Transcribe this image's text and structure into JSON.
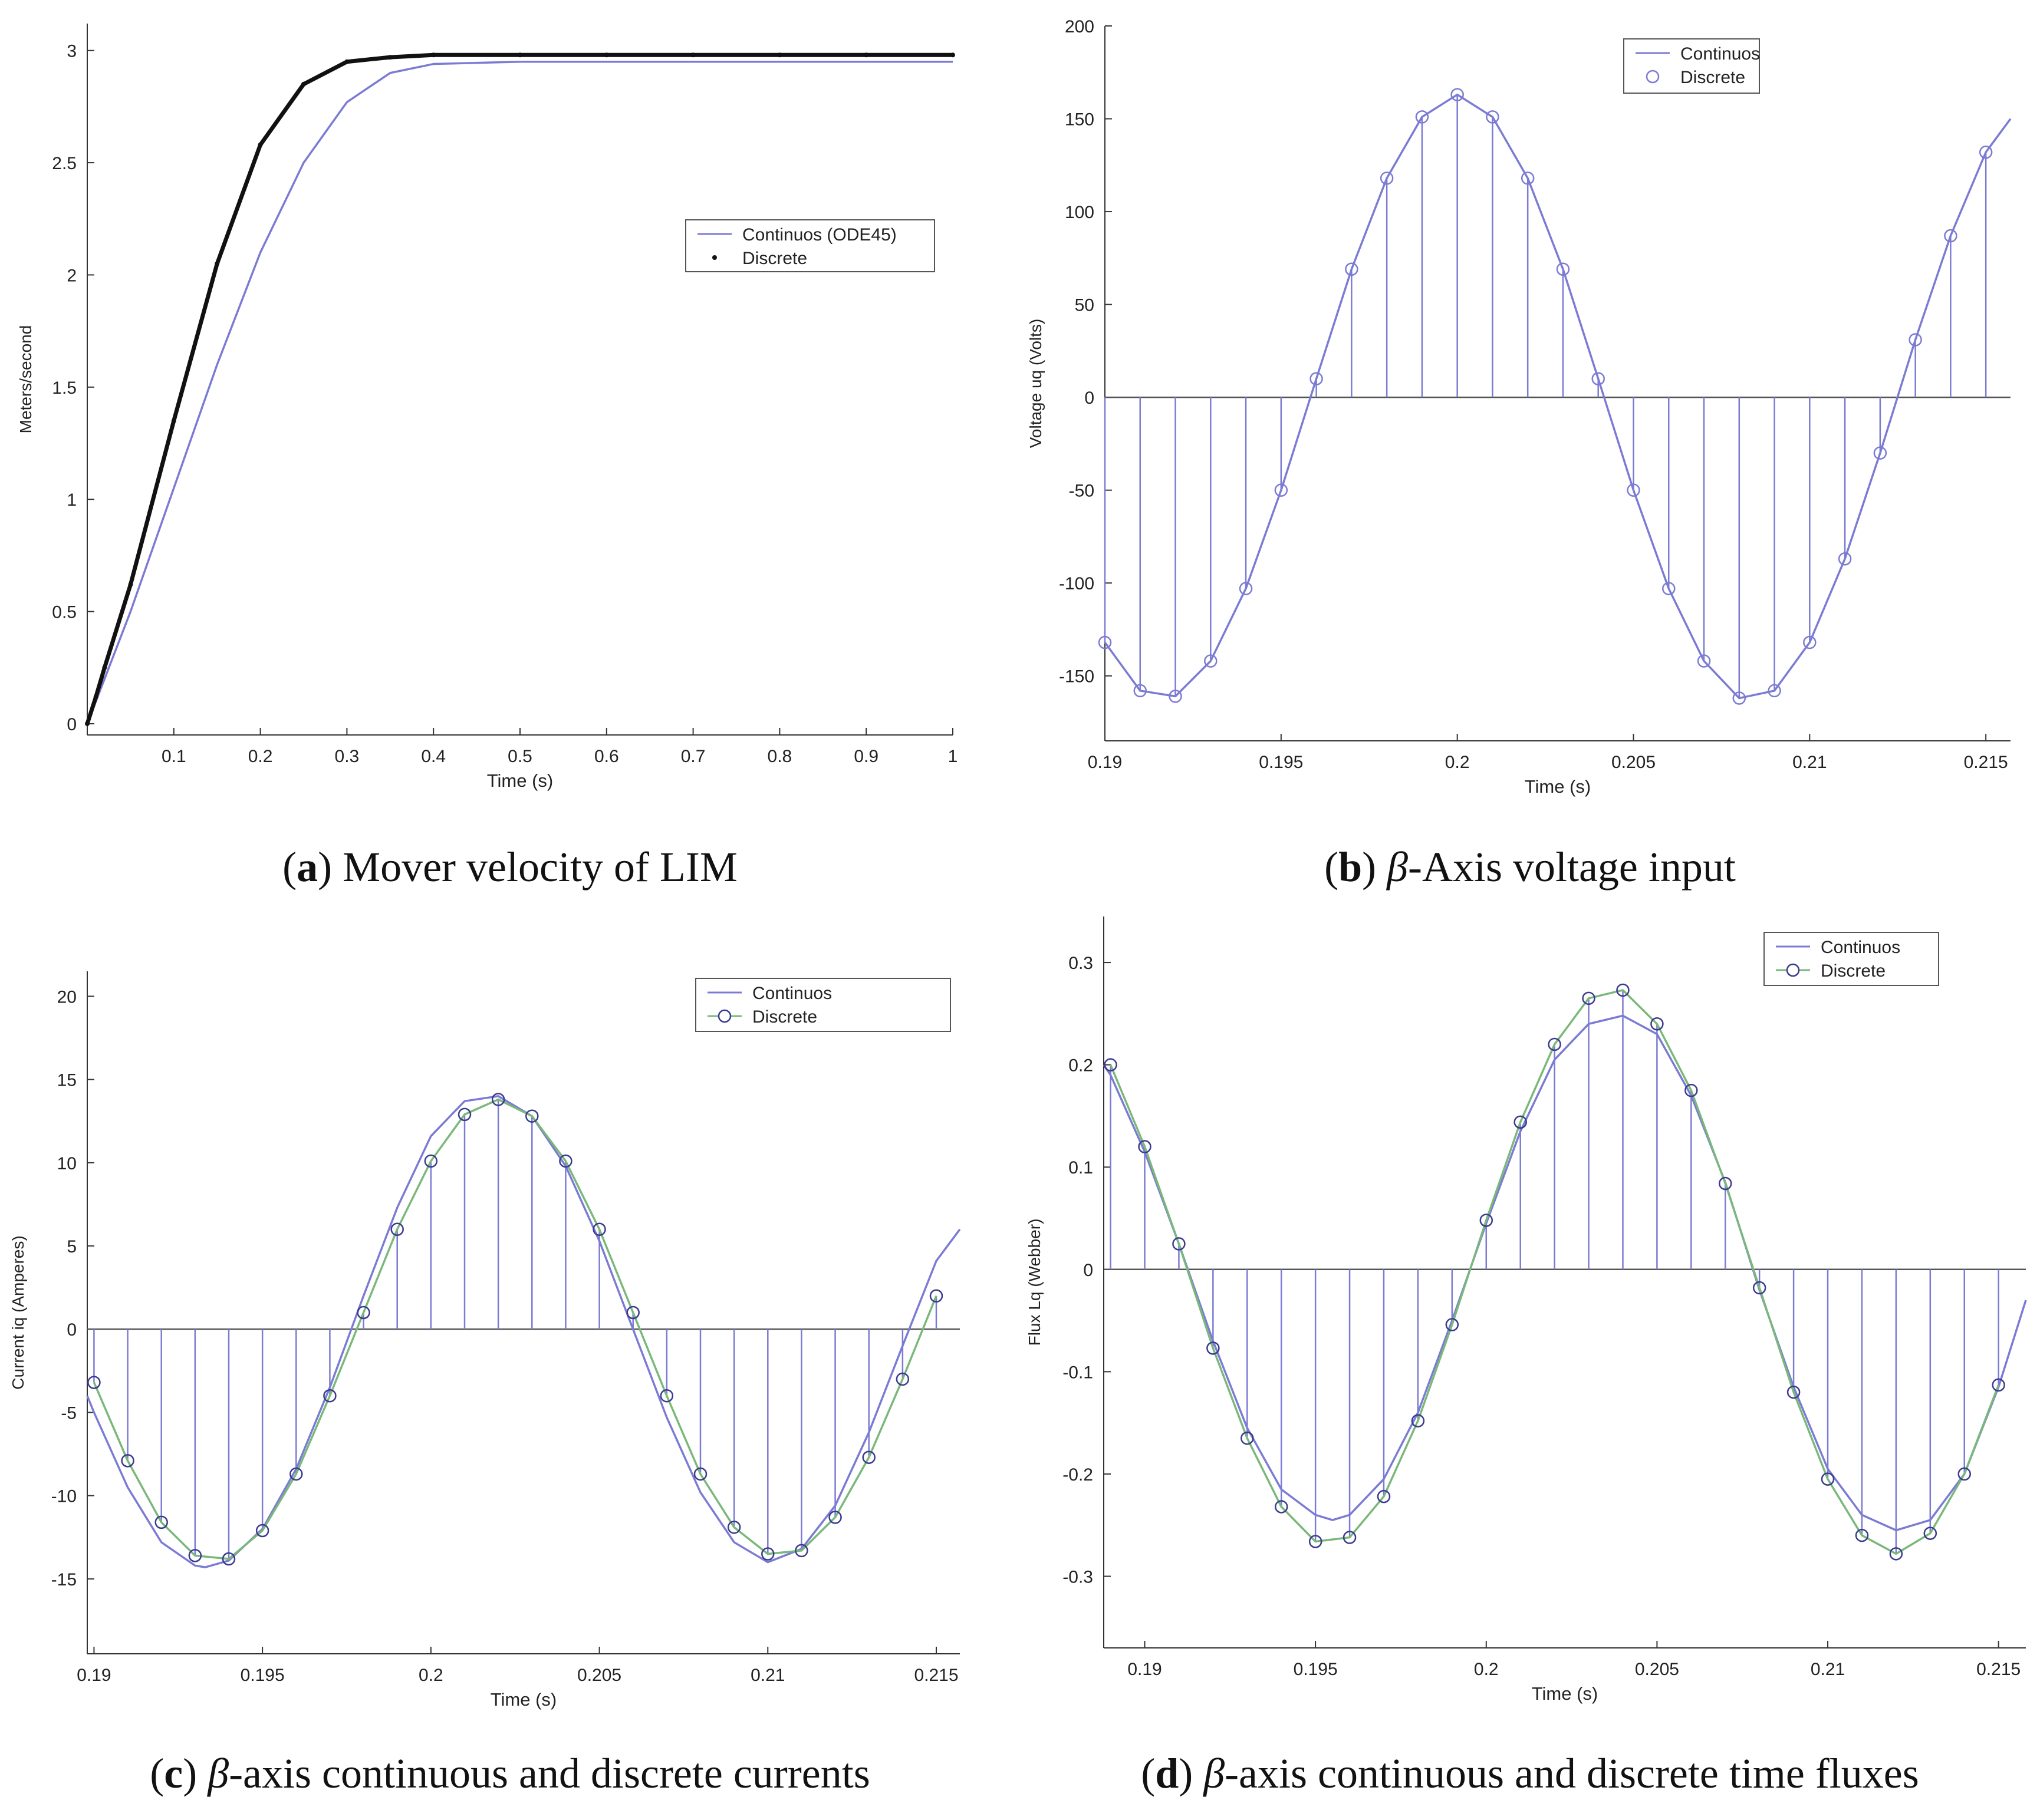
{
  "chart_data": [
    {
      "id": "a",
      "type": "line",
      "caption": {
        "letter": "a",
        "text": "Mover velocity of LIM"
      },
      "xlabel": "Time (s)",
      "ylabel": "Meters/second",
      "xlim": [
        0,
        1
      ],
      "ylim": [
        -0.05,
        3.12
      ],
      "xticks": [
        0.1,
        0.2,
        0.3,
        0.4,
        0.5,
        0.6,
        0.7,
        0.8,
        0.9,
        1
      ],
      "xtick_labels": [
        "0.1",
        "0.2",
        "0.3",
        "0.4",
        "0.5",
        "0.6",
        "0.7",
        "0.8",
        "0.9",
        "1"
      ],
      "yticks": [
        0,
        0.5,
        1,
        1.5,
        2,
        2.5,
        3
      ],
      "ytick_labels": [
        "0",
        "0.5",
        "1",
        "1.5",
        "2",
        "2.5",
        "3"
      ],
      "legend": {
        "position": "right",
        "entries": [
          "Continuos (ODE45)",
          "Discrete"
        ]
      },
      "series": [
        {
          "name": "Continuos (ODE45)",
          "style": "line",
          "color": "#7b7bd4",
          "x": [
            0,
            0.01,
            0.02,
            0.05,
            0.1,
            0.15,
            0.2,
            0.25,
            0.3,
            0.35,
            0.4,
            0.5,
            0.6,
            0.7,
            0.8,
            0.9,
            1.0
          ],
          "y": [
            0,
            0.1,
            0.2,
            0.5,
            1.05,
            1.6,
            2.1,
            2.5,
            2.77,
            2.9,
            2.94,
            2.95,
            2.95,
            2.95,
            2.95,
            2.95,
            2.95
          ]
        },
        {
          "name": "Discrete",
          "style": "dots",
          "color": "#111111",
          "x": [
            0,
            0.01,
            0.02,
            0.05,
            0.1,
            0.15,
            0.2,
            0.25,
            0.3,
            0.35,
            0.4,
            0.5,
            0.6,
            0.7,
            0.8,
            0.9,
            1.0
          ],
          "y": [
            0,
            0.12,
            0.25,
            0.62,
            1.35,
            2.05,
            2.58,
            2.85,
            2.95,
            2.97,
            2.98,
            2.98,
            2.98,
            2.98,
            2.98,
            2.98,
            2.98
          ]
        }
      ]
    },
    {
      "id": "b",
      "type": "line",
      "caption": {
        "letter": "b",
        "text": "-Axis voltage input"
      },
      "xlabel": "Time (s)",
      "ylabel": "Voltage uq (Volts)",
      "xlim": [
        0.19,
        0.2157
      ],
      "ylim": [
        -185,
        200
      ],
      "xticks": [
        0.19,
        0.195,
        0.2,
        0.205,
        0.21,
        0.215
      ],
      "xtick_labels": [
        "0.19",
        "0.195",
        "0.2",
        "0.205",
        "0.21",
        "0.215"
      ],
      "yticks": [
        -150,
        -100,
        -50,
        0,
        50,
        100,
        150,
        200
      ],
      "ytick_labels": [
        "-150",
        "-100",
        "-50",
        "0",
        "50",
        "100",
        "150",
        "200"
      ],
      "legend": {
        "position": "top-right",
        "entries": [
          "Continuos",
          "Discrete"
        ]
      },
      "series": [
        {
          "name": "Continuos",
          "style": "line",
          "color": "#7b7bd4",
          "x": [
            0.19,
            0.191,
            0.192,
            0.193,
            0.194,
            0.195,
            0.196,
            0.197,
            0.198,
            0.199,
            0.2,
            0.201,
            0.202,
            0.203,
            0.204,
            0.205,
            0.206,
            0.207,
            0.208,
            0.209,
            0.21,
            0.211,
            0.212,
            0.213,
            0.214,
            0.215,
            0.2157
          ],
          "y": [
            -132,
            -158,
            -161,
            -142,
            -103,
            -50,
            10,
            69,
            118,
            151,
            163,
            151,
            118,
            69,
            10,
            -50,
            -103,
            -142,
            -162,
            -158,
            -132,
            -87,
            -30,
            31,
            87,
            132,
            150
          ]
        },
        {
          "name": "Discrete",
          "style": "stem",
          "color": "#7b7bd4",
          "x": [
            0.19,
            0.191,
            0.192,
            0.193,
            0.194,
            0.195,
            0.196,
            0.197,
            0.198,
            0.199,
            0.2,
            0.201,
            0.202,
            0.203,
            0.204,
            0.205,
            0.206,
            0.207,
            0.208,
            0.209,
            0.21,
            0.211,
            0.212,
            0.213,
            0.214,
            0.215
          ],
          "y": [
            -132,
            -158,
            -161,
            -142,
            -103,
            -50,
            10,
            69,
            118,
            151,
            163,
            151,
            118,
            69,
            10,
            -50,
            -103,
            -142,
            -162,
            -158,
            -132,
            -87,
            -30,
            31,
            87,
            132
          ]
        }
      ]
    },
    {
      "id": "c",
      "type": "line",
      "caption": {
        "letter": "c",
        "text": "-axis continuous and discrete currents"
      },
      "xlabel": "Time (s)",
      "ylabel": "Current iq (Amperes)",
      "xlim": [
        0.1898,
        0.2157
      ],
      "ylim": [
        -19.5,
        21.5
      ],
      "xticks": [
        0.19,
        0.195,
        0.2,
        0.205,
        0.21,
        0.215
      ],
      "xtick_labels": [
        "0.19",
        "0.195",
        "0.2",
        "0.205",
        "0.21",
        "0.215"
      ],
      "yticks": [
        -15,
        -10,
        -5,
        0,
        5,
        10,
        15,
        20
      ],
      "ytick_labels": [
        "-15",
        "-10",
        "-5",
        "0",
        "5",
        "10",
        "15",
        "20"
      ],
      "legend": {
        "position": "top-right",
        "entries": [
          "Continuos",
          "Discrete"
        ]
      },
      "series": [
        {
          "name": "Continuos",
          "style": "line",
          "color": "#7b7bd4",
          "x": [
            0.1898,
            0.19,
            0.191,
            0.192,
            0.193,
            0.1933,
            0.194,
            0.195,
            0.196,
            0.197,
            0.198,
            0.199,
            0.2,
            0.201,
            0.202,
            0.203,
            0.204,
            0.205,
            0.206,
            0.207,
            0.208,
            0.209,
            0.21,
            0.211,
            0.212,
            0.213,
            0.214,
            0.215,
            0.2157
          ],
          "y": [
            -4.0,
            -5.0,
            -9.5,
            -12.8,
            -14.2,
            -14.3,
            -13.9,
            -12.0,
            -8.4,
            -3.5,
            2.0,
            7.3,
            11.6,
            13.7,
            14.0,
            12.8,
            9.8,
            5.3,
            0.0,
            -5.3,
            -9.8,
            -12.8,
            -14.0,
            -13.2,
            -10.6,
            -6.2,
            -1.0,
            4.1,
            6.0
          ]
        },
        {
          "name": "Discrete",
          "style": "stem-line",
          "color": "#7ab87a",
          "stem_color": "#7b7bd4",
          "x": [
            0.19,
            0.191,
            0.192,
            0.193,
            0.194,
            0.195,
            0.196,
            0.197,
            0.198,
            0.199,
            0.2,
            0.201,
            0.202,
            0.203,
            0.204,
            0.205,
            0.206,
            0.207,
            0.208,
            0.209,
            0.21,
            0.211,
            0.212,
            0.213,
            0.214,
            0.215
          ],
          "y": [
            -3.2,
            -7.9,
            -11.6,
            -13.6,
            -13.8,
            -12.1,
            -8.7,
            -4.0,
            1.0,
            6.0,
            10.1,
            12.9,
            13.8,
            12.8,
            10.1,
            6.0,
            1.0,
            -4.0,
            -8.7,
            -11.9,
            -13.5,
            -13.3,
            -11.3,
            -7.7,
            -3.0,
            2.0
          ]
        }
      ]
    },
    {
      "id": "d",
      "type": "line",
      "caption": {
        "letter": "d",
        "text": "-axis continuous and discrete time fluxes"
      },
      "xlabel": "Time (s)",
      "ylabel": "Flux Lq (Webber)",
      "xlim": [
        0.1888,
        0.2158
      ],
      "ylim": [
        -0.37,
        0.345
      ],
      "xticks": [
        0.19,
        0.195,
        0.2,
        0.205,
        0.21,
        0.215
      ],
      "xtick_labels": [
        "0.19",
        "0.195",
        "0.2",
        "0.205",
        "0.21",
        "0.215"
      ],
      "yticks": [
        -0.3,
        -0.2,
        -0.1,
        0,
        0.1,
        0.2,
        0.3
      ],
      "ytick_labels": [
        "-0.3",
        "-0.2",
        "-0.1",
        "0",
        "0.1",
        "0.2",
        "0.3"
      ],
      "legend": {
        "position": "top-right",
        "entries": [
          "Continuos",
          "Discrete"
        ]
      },
      "series": [
        {
          "name": "Continuos",
          "style": "line",
          "color": "#7b7bd4",
          "x": [
            0.1888,
            0.189,
            0.19,
            0.191,
            0.192,
            0.193,
            0.194,
            0.195,
            0.1955,
            0.196,
            0.197,
            0.198,
            0.199,
            0.2,
            0.201,
            0.202,
            0.203,
            0.204,
            0.205,
            0.206,
            0.207,
            0.208,
            0.209,
            0.21,
            0.211,
            0.212,
            0.213,
            0.214,
            0.215,
            0.2158
          ],
          "y": [
            0.2,
            0.19,
            0.115,
            0.025,
            -0.07,
            -0.155,
            -0.215,
            -0.24,
            -0.245,
            -0.24,
            -0.205,
            -0.14,
            -0.05,
            0.045,
            0.135,
            0.205,
            0.24,
            0.248,
            0.23,
            0.17,
            0.085,
            -0.02,
            -0.115,
            -0.195,
            -0.24,
            -0.255,
            -0.245,
            -0.2,
            -0.115,
            -0.03
          ]
        },
        {
          "name": "Discrete",
          "style": "stem-line",
          "color": "#7ab87a",
          "stem_color": "#7b7bd4",
          "x": [
            0.189,
            0.19,
            0.191,
            0.192,
            0.193,
            0.194,
            0.195,
            0.196,
            0.197,
            0.198,
            0.199,
            0.2,
            0.201,
            0.202,
            0.203,
            0.204,
            0.205,
            0.206,
            0.207,
            0.208,
            0.209,
            0.21,
            0.211,
            0.212,
            0.213,
            0.214,
            0.215
          ],
          "y": [
            0.2,
            0.12,
            0.025,
            -0.077,
            -0.165,
            -0.232,
            -0.266,
            -0.262,
            -0.222,
            -0.148,
            -0.054,
            0.048,
            0.144,
            0.22,
            0.265,
            0.273,
            0.24,
            0.175,
            0.084,
            -0.018,
            -0.12,
            -0.205,
            -0.26,
            -0.278,
            -0.258,
            -0.2,
            -0.113
          ]
        }
      ]
    }
  ]
}
